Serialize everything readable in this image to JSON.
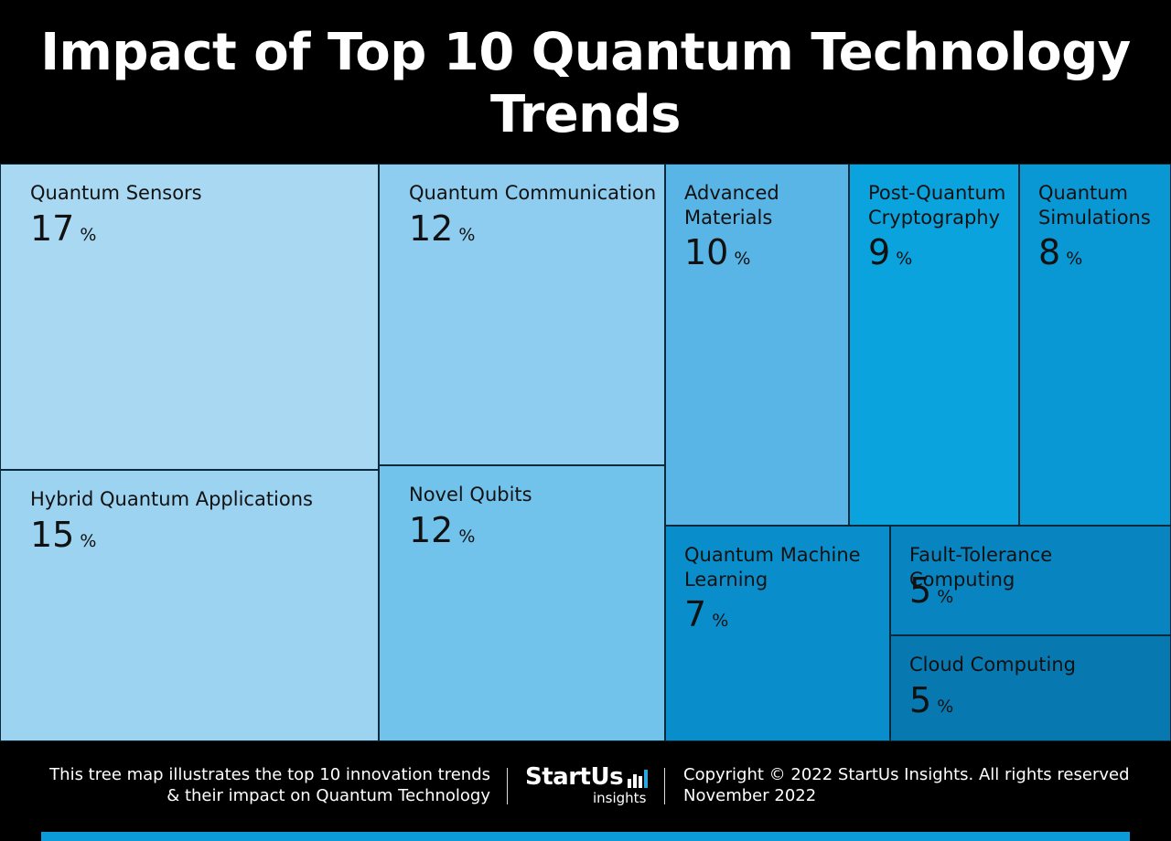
{
  "title_line1": "Impact of Top 10 Quantum Technology",
  "title_line2": "Trends",
  "chart_data": {
    "type": "treemap",
    "unit": "%",
    "items": [
      {
        "label": "Quantum Sensors",
        "value": 17,
        "color": "#a9d8f3"
      },
      {
        "label": "Hybrid Quantum Applications",
        "value": 15,
        "color": "#9bd3f1"
      },
      {
        "label": "Quantum Communication",
        "value": 12,
        "color": "#8ecdef"
      },
      {
        "label": "Novel Qubits",
        "value": 12,
        "color": "#72c3ec"
      },
      {
        "label": "Advanced Materials",
        "value": 10,
        "color": "#58b5e5"
      },
      {
        "label": "Post-Quantum Cryptography",
        "value": 9,
        "color": "#0aa3dd"
      },
      {
        "label": "Quantum Simulations",
        "value": 8,
        "color": "#0a98d5"
      },
      {
        "label": "Quantum Machine Learning",
        "value": 7,
        "color": "#0a8ecb"
      },
      {
        "label": "Fault-Tolerance Computing",
        "value": 5,
        "color": "#0884c1"
      },
      {
        "label": "Cloud Computing",
        "value": 5,
        "color": "#0878b1"
      }
    ]
  },
  "footer": {
    "description_line1": "This tree map illustrates the top 10 innovation trends",
    "description_line2": "& their impact on Quantum Technology",
    "logo_brand": "StartUs",
    "logo_sub": "insights",
    "copyright": "Copyright © 2022 StartUs Insights. All rights reserved",
    "date": "November 2022"
  }
}
